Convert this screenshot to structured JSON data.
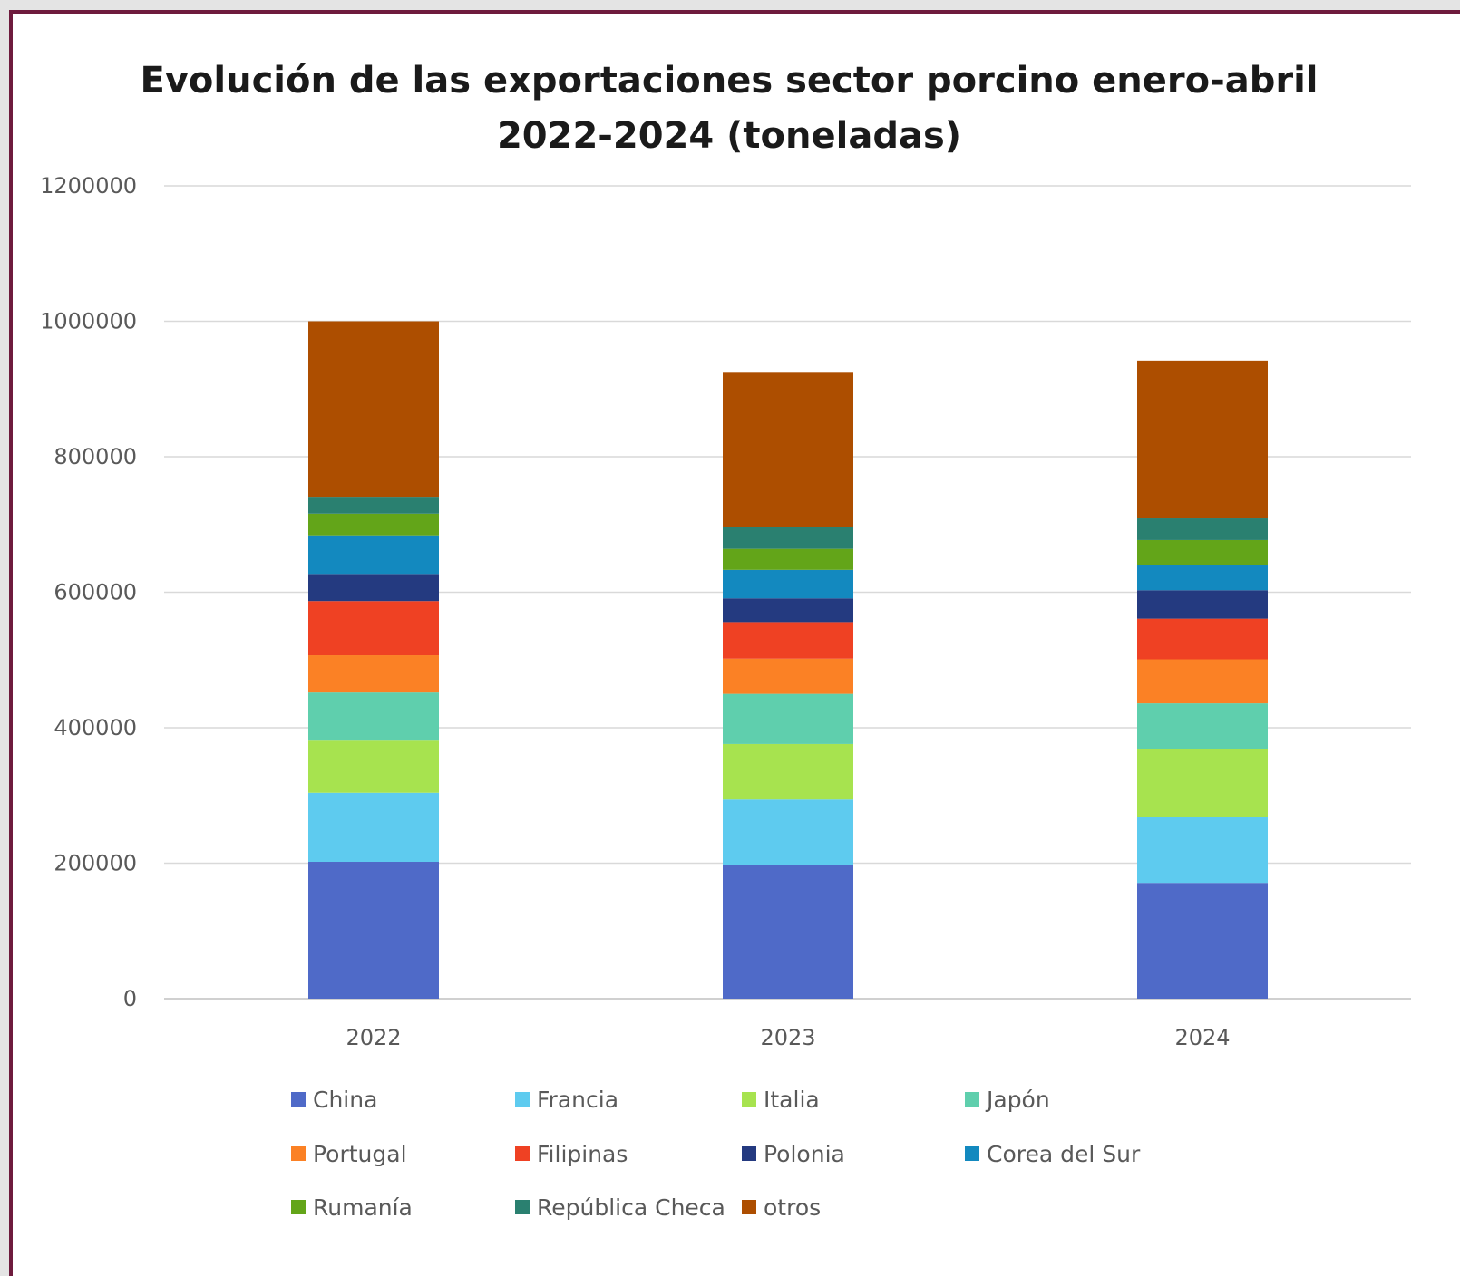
{
  "chart_data": {
    "type": "bar",
    "stacked": true,
    "title": "Evolución de las exportaciones sector porcino enero-abril",
    "subtitle": "2022-2024 (toneladas)",
    "xlabel": "",
    "ylabel": "",
    "ylim": [
      0,
      1200000
    ],
    "yticks": [
      "0",
      "200000",
      "400000",
      "600000",
      "800000",
      "1000000",
      "1200000"
    ],
    "grid": true,
    "legend_position": "bottom",
    "categories": [
      "2022",
      "2023",
      "2024"
    ],
    "series": [
      {
        "name": "China",
        "color": "#4f6ac8",
        "values": [
          202000,
          197000,
          171000
        ]
      },
      {
        "name": "Francia",
        "color": "#5ecbef",
        "values": [
          102000,
          97000,
          97000
        ]
      },
      {
        "name": "Italia",
        "color": "#a7e34f",
        "values": [
          77000,
          82000,
          100000
        ]
      },
      {
        "name": "Japón",
        "color": "#5fcfad",
        "values": [
          71000,
          74000,
          68000
        ]
      },
      {
        "name": "Portugal",
        "color": "#fb8125",
        "values": [
          55000,
          52000,
          65000
        ]
      },
      {
        "name": "Filipinas",
        "color": "#ef4123",
        "values": [
          80000,
          54000,
          60000
        ]
      },
      {
        "name": "Polonia",
        "color": "#243a80",
        "values": [
          40000,
          35000,
          42000
        ]
      },
      {
        "name": "Corea del Sur",
        "color": "#1389bf",
        "values": [
          57000,
          42000,
          37000
        ]
      },
      {
        "name": "Rumanía",
        "color": "#63a519",
        "values": [
          32000,
          31000,
          37000
        ]
      },
      {
        "name": "República Checa",
        "color": "#2a8070",
        "values": [
          25000,
          32000,
          32000
        ]
      },
      {
        "name": "otros",
        "color": "#ad4e00",
        "values": [
          259000,
          228000,
          233000
        ]
      }
    ]
  }
}
